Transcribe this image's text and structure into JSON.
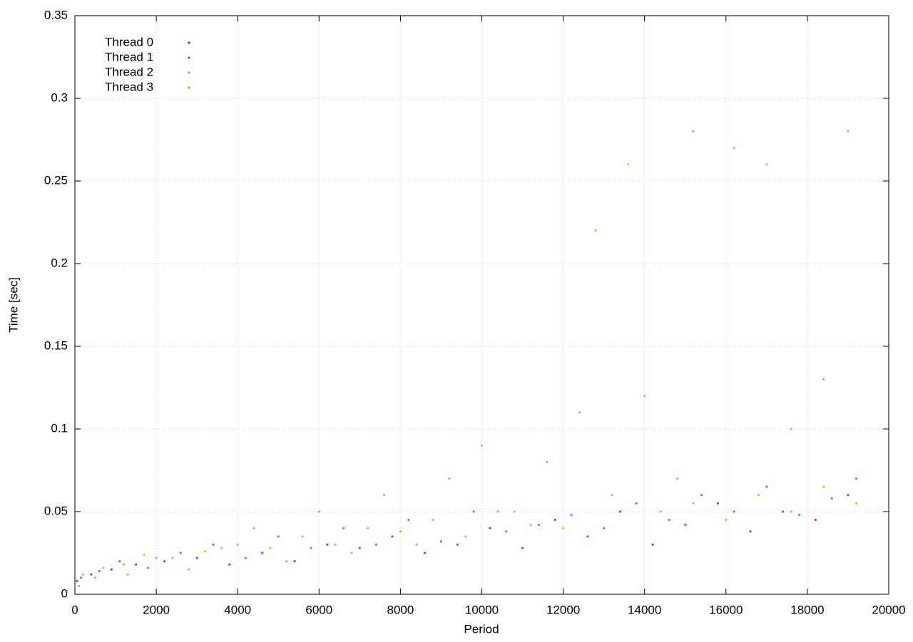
{
  "chart_data": {
    "type": "scatter",
    "xlabel": "Period",
    "ylabel": "Time [sec]",
    "xlim": [
      0,
      20000
    ],
    "xticks": [
      0,
      2000,
      4000,
      6000,
      8000,
      10000,
      12000,
      14000,
      16000,
      18000,
      20000
    ],
    "ylim": [
      0,
      0.35
    ],
    "yticks": [
      0,
      0.05,
      0.1,
      0.15,
      0.2,
      0.25,
      0.3,
      0.35
    ],
    "grid": true,
    "legend": "top-left",
    "series": [
      {
        "name": "Thread 0",
        "color": "#9400d3",
        "x": [
          50,
          400,
          900,
          1500,
          2200,
          3000,
          3800,
          4600,
          5400,
          6200,
          7000,
          7800,
          8600,
          9400,
          10200,
          11000,
          11800,
          12600,
          13400,
          14200,
          15000,
          15800,
          16600,
          17400,
          18200,
          19000
        ],
        "y": [
          0.008,
          0.012,
          0.015,
          0.018,
          0.02,
          0.022,
          0.018,
          0.025,
          0.02,
          0.03,
          0.028,
          0.035,
          0.025,
          0.03,
          0.04,
          0.028,
          0.045,
          0.035,
          0.05,
          0.03,
          0.042,
          0.055,
          0.038,
          0.05,
          0.045,
          0.06
        ]
      },
      {
        "name": "Thread 1",
        "color": "#009e73",
        "x": [
          150,
          600,
          1100,
          1800,
          2600,
          3400,
          4200,
          5000,
          5800,
          6600,
          7400,
          8200,
          9000,
          9800,
          10600,
          11400,
          12200,
          13000,
          13800,
          14600,
          15400,
          16200,
          17000,
          17800,
          18600,
          19200
        ],
        "y": [
          0.01,
          0.014,
          0.02,
          0.016,
          0.025,
          0.03,
          0.022,
          0.035,
          0.028,
          0.04,
          0.03,
          0.045,
          0.032,
          0.05,
          0.038,
          0.042,
          0.048,
          0.04,
          0.055,
          0.045,
          0.06,
          0.05,
          0.065,
          0.048,
          0.058,
          0.07
        ]
      },
      {
        "name": "Thread 2",
        "color": "#56b4e9",
        "x": [
          100,
          500,
          1300,
          2000,
          2800,
          3600,
          4400,
          5200,
          6000,
          6800,
          7600,
          8400,
          9200,
          10000,
          10800,
          11600,
          12400,
          13200,
          14000,
          14800,
          15200,
          16200,
          17000,
          17600,
          18400,
          19000
        ],
        "y": [
          0.005,
          0.01,
          0.012,
          0.022,
          0.015,
          0.028,
          0.04,
          0.02,
          0.05,
          0.025,
          0.06,
          0.03,
          0.07,
          0.09,
          0.05,
          0.08,
          0.11,
          0.06,
          0.12,
          0.07,
          0.28,
          0.27,
          0.26,
          0.1,
          0.13,
          0.28
        ]
      },
      {
        "name": "Thread 3",
        "color": "#e69f00",
        "x": [
          200,
          700,
          1200,
          1700,
          2400,
          3200,
          4000,
          4800,
          5600,
          6400,
          7200,
          8000,
          8800,
          9600,
          10400,
          11200,
          12000,
          12800,
          13600,
          14400,
          15200,
          16000,
          16800,
          17600,
          18400,
          19200
        ],
        "y": [
          0.012,
          0.016,
          0.018,
          0.024,
          0.022,
          0.026,
          0.03,
          0.028,
          0.035,
          0.03,
          0.04,
          0.038,
          0.045,
          0.035,
          0.05,
          0.042,
          0.04,
          0.22,
          0.26,
          0.05,
          0.055,
          0.045,
          0.06,
          0.05,
          0.065,
          0.055
        ]
      }
    ]
  }
}
